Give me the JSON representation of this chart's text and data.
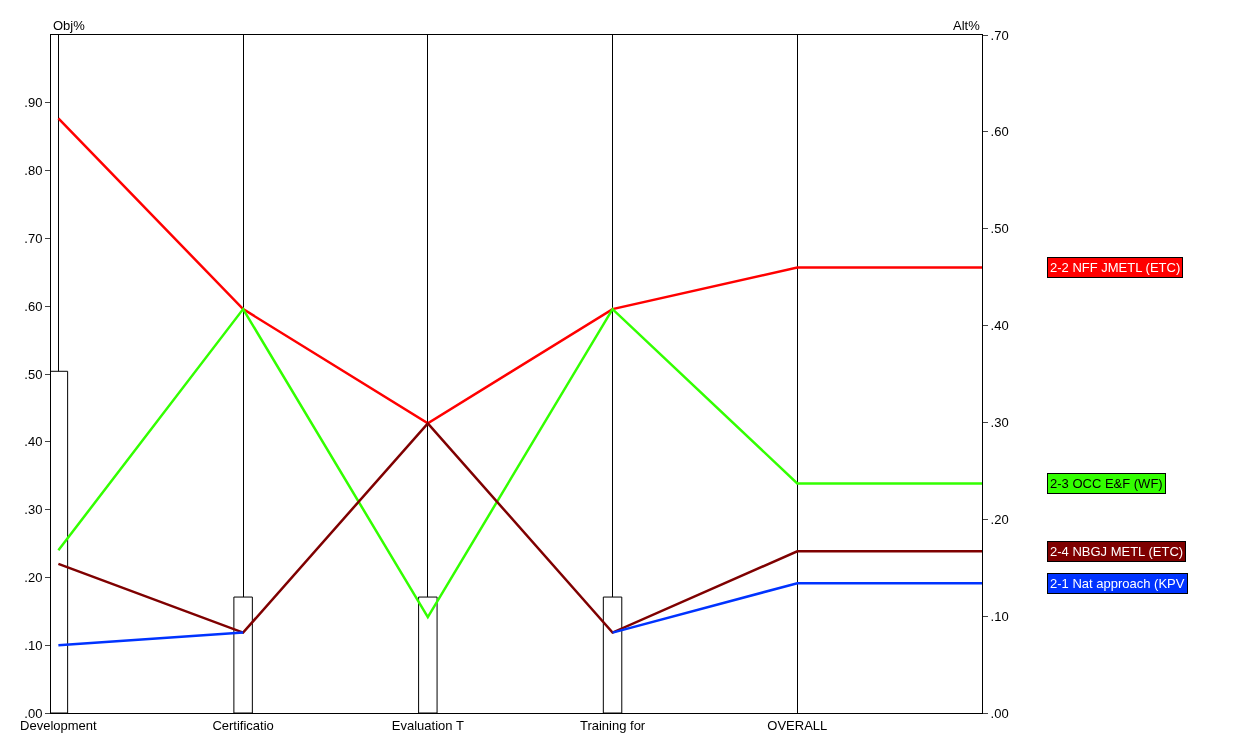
{
  "chart_data": {
    "type": "line",
    "ylabel": "Obj%",
    "y2label": "Alt%",
    "categories": [
      "Development",
      "Certificatio",
      "Evaluation T",
      "Training for",
      "OVERALL",
      null
    ],
    "series": [
      {
        "type": "bar",
        "color": "#ffffff",
        "values": [
          0.504,
          0.171,
          0.171,
          0.171,
          null,
          null
        ]
      },
      {
        "axis": "y2",
        "name": "2-2 NFF JMETL (ETC)",
        "color": "#ff0000",
        "values": [
          0.614,
          0.417,
          0.299,
          0.417,
          0.46,
          0.46
        ]
      },
      {
        "axis": "y2",
        "name": "2-3 OCC E&F (WF)",
        "color": "#33ff00",
        "values": [
          0.168,
          0.417,
          0.099,
          0.417,
          0.237,
          0.237
        ]
      },
      {
        "axis": "y2",
        "name": "2-4 NBGJ METL (ETC)",
        "color": "#7f0000",
        "values": [
          0.154,
          0.083,
          0.299,
          0.083,
          0.167,
          0.167
        ]
      },
      {
        "axis": "y2",
        "name": "2-1 Nat approach (KPV",
        "color": "#0033ff",
        "values": [
          0.07,
          0.083,
          null,
          0.083,
          0.134,
          0.134
        ]
      }
    ],
    "ylim": [
      0,
      1.0
    ],
    "yticks": [
      {
        "value": 0,
        "label": ".00"
      },
      {
        "value": 0.1,
        "label": ".10"
      },
      {
        "value": 0.2,
        "label": ".20"
      },
      {
        "value": 0.3,
        "label": ".30"
      },
      {
        "value": 0.4,
        "label": ".40"
      },
      {
        "value": 0.5,
        "label": ".50"
      },
      {
        "value": 0.6,
        "label": ".60"
      },
      {
        "value": 0.7,
        "label": ".70"
      },
      {
        "value": 0.8,
        "label": ".80"
      },
      {
        "value": 0.9,
        "label": ".90"
      }
    ],
    "y2lim": [
      0,
      0.7
    ],
    "y2ticks": [
      {
        "value": 0,
        "label": ".00"
      },
      {
        "value": 0.1,
        "label": ".10"
      },
      {
        "value": 0.2,
        "label": ".20"
      },
      {
        "value": 0.3,
        "label": ".30"
      },
      {
        "value": 0.4,
        "label": ".40"
      },
      {
        "value": 0.5,
        "label": ".50"
      },
      {
        "value": 0.6,
        "label": ".60"
      },
      {
        "value": 0.7,
        "label": ".70"
      }
    ],
    "grid": "x",
    "legend": false,
    "marker": "none",
    "line_style": "solid"
  }
}
